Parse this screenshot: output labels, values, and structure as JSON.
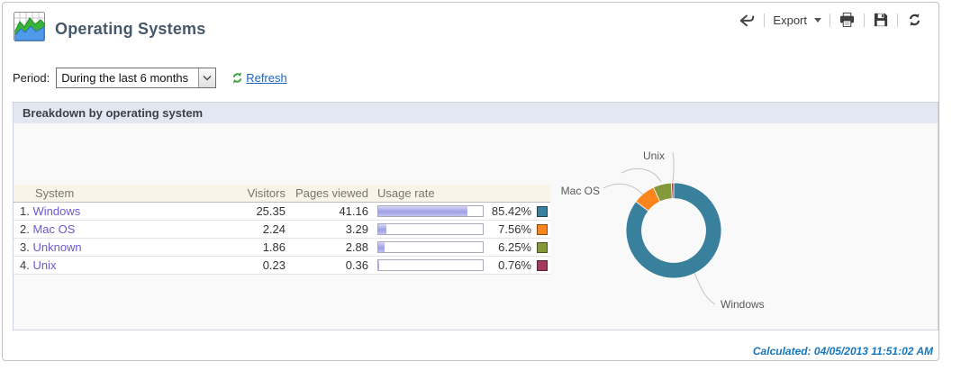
{
  "header": {
    "title": "Operating Systems"
  },
  "toolbar": {
    "export_label": "Export",
    "icons": [
      "back-arrow",
      "chevron-down",
      "printer",
      "floppy-disk",
      "reload-circular-arrows"
    ]
  },
  "period": {
    "label": "Period:",
    "selected": "During the last 6 months",
    "refresh_label": "Refresh",
    "refresh_icon": "green-circular-arrows",
    "refresh_icon_color": "#3fa33f"
  },
  "panel": {
    "title": "Breakdown by operating system"
  },
  "table": {
    "columns": [
      "System",
      "Visitors",
      "Pages viewed",
      "Usage rate"
    ],
    "rows": [
      {
        "rank": "1.",
        "name": "Windows",
        "visitors": "25.35",
        "pages": "41.16",
        "usage_pct": 85.42,
        "usage_label": "85.42%",
        "color": "#38809c"
      },
      {
        "rank": "2.",
        "name": "Mac OS",
        "visitors": "2.24",
        "pages": "3.29",
        "usage_pct": 7.56,
        "usage_label": "7.56%",
        "color": "#f9851c"
      },
      {
        "rank": "3.",
        "name": "Unknown",
        "visitors": "1.86",
        "pages": "2.88",
        "usage_pct": 6.25,
        "usage_label": "6.25%",
        "color": "#85993b"
      },
      {
        "rank": "4.",
        "name": "Unix",
        "visitors": "0.23",
        "pages": "0.36",
        "usage_pct": 0.76,
        "usage_label": "0.76%",
        "color": "#a23b5c"
      }
    ],
    "bar_fill_color": "#a8a8e8"
  },
  "chart_data": {
    "type": "pie",
    "subtype": "donut",
    "title": "",
    "categories": [
      "Windows",
      "Mac OS",
      "Unknown",
      "Unix"
    ],
    "values": [
      85.42,
      7.56,
      6.25,
      0.76
    ],
    "unit": "%",
    "colors": [
      "#38809c",
      "#f9851c",
      "#85993b",
      "#a23b5c"
    ],
    "start_angle_deg": 0,
    "direction": "clockwise",
    "visible_point_labels": [
      "Windows",
      "Mac OS",
      "Unix"
    ],
    "legend_position": "none"
  },
  "footer": {
    "calculated_label": "Calculated: 04/05/2013 11:51:02 AM"
  }
}
